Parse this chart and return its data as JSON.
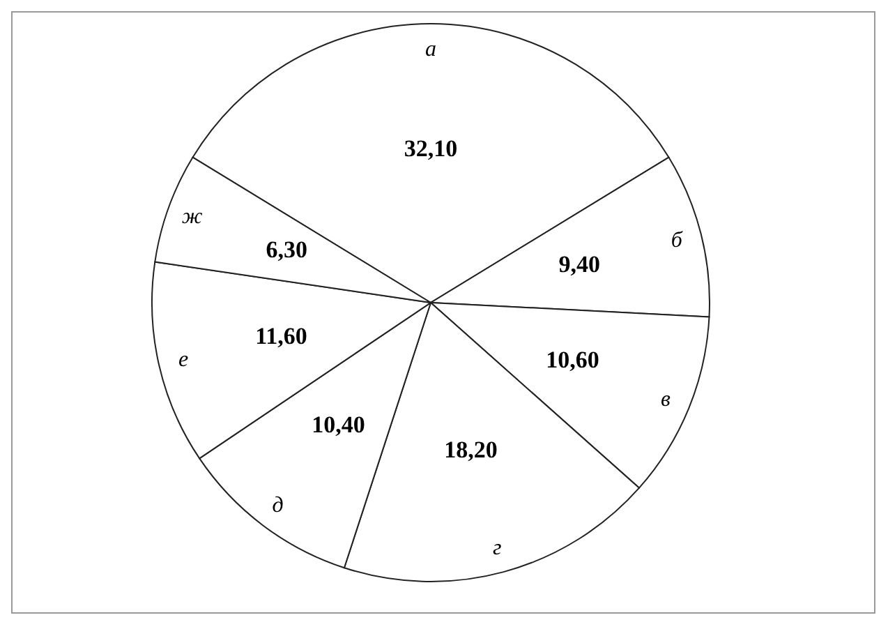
{
  "chart_data": {
    "type": "pie",
    "categories": [
      "а",
      "б",
      "в",
      "г",
      "д",
      "е",
      "ж"
    ],
    "values": [
      32.1,
      9.4,
      10.6,
      18.2,
      10.4,
      11.6,
      6.3
    ],
    "value_labels": [
      "32,10",
      "9,40",
      "10,60",
      "18,20",
      "10,40",
      "11,60",
      "6,30"
    ],
    "colors": [
      "#ffffff",
      "#ffffff",
      "#ffffff",
      "#ffffff",
      "#ffffff",
      "#ffffff",
      "#ffffff"
    ],
    "legend": false
  }
}
